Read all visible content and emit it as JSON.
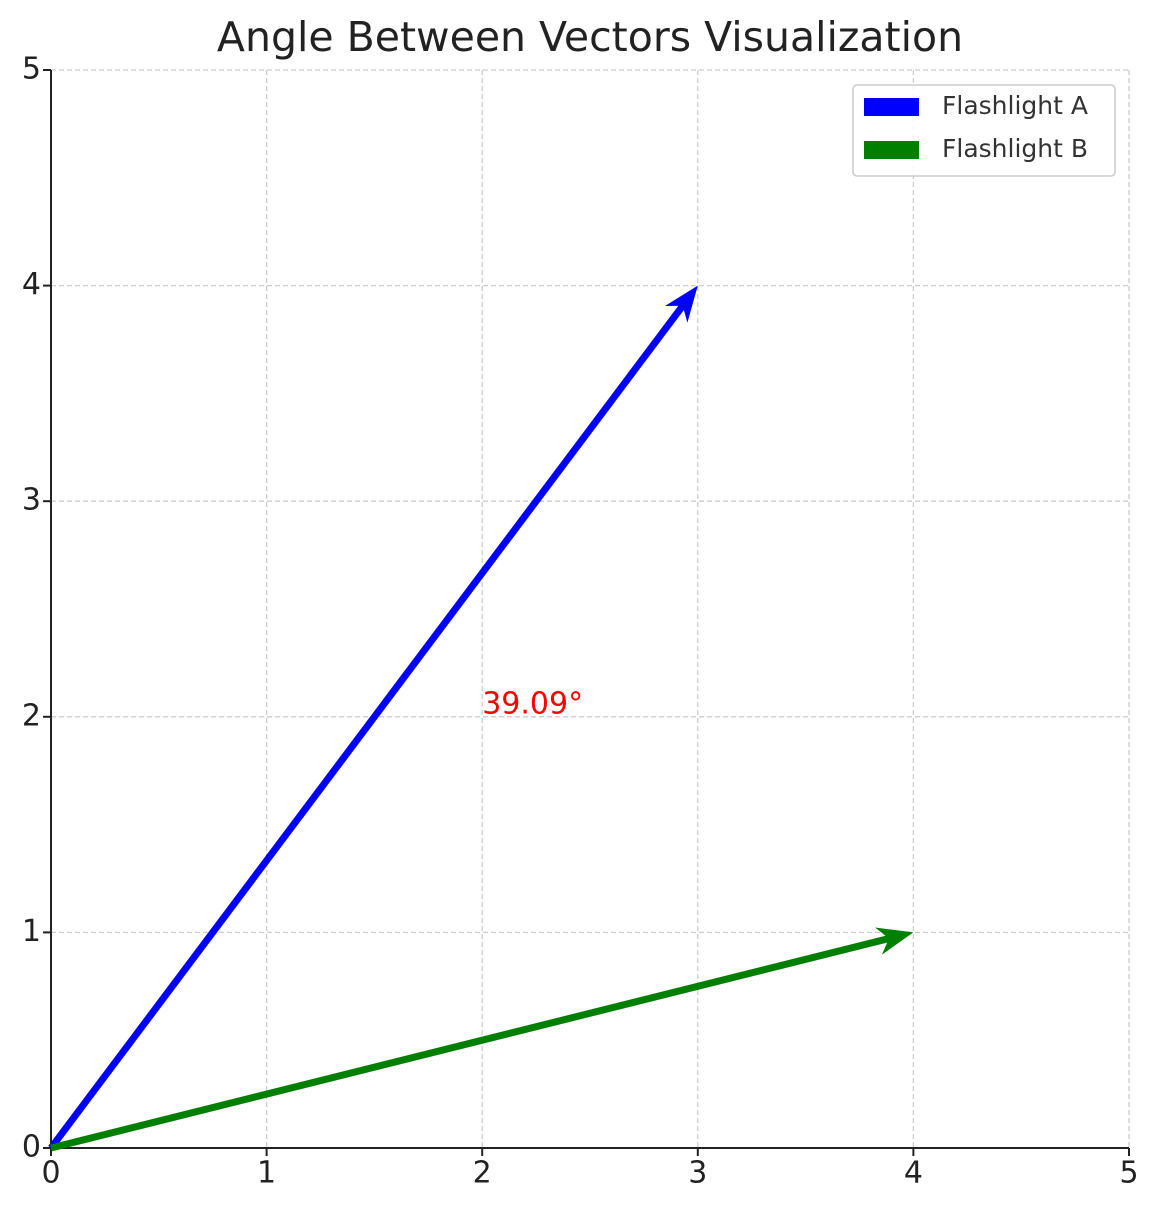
{
  "chart_data": {
    "type": "quiver",
    "title": "Angle Between Vectors Visualization",
    "series": [
      {
        "name": "Flashlight A",
        "color": "#0000ff",
        "x": [
          0,
          3
        ],
        "y": [
          0,
          4
        ]
      },
      {
        "name": "Flashlight B",
        "color": "#008000",
        "x": [
          0,
          4
        ],
        "y": [
          0,
          1
        ]
      }
    ],
    "annotation": {
      "text": "39.09°",
      "color": "#ff0000",
      "x": 2,
      "y": 2
    },
    "xlim": [
      0,
      5
    ],
    "ylim": [
      0,
      5
    ],
    "xticks": [
      0,
      1,
      2,
      3,
      4,
      5
    ],
    "yticks": [
      0,
      1,
      2,
      3,
      4,
      5
    ],
    "grid": true,
    "legend": "upper right"
  }
}
